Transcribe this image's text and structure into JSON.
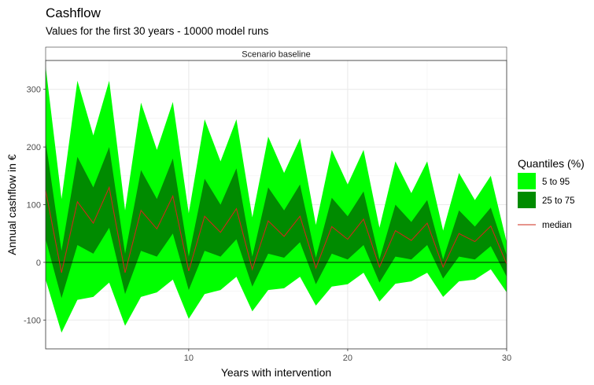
{
  "chart_data": {
    "type": "area",
    "title": "Cashflow",
    "subtitle": "Values for the first 30 years - 10000 model runs",
    "facet_label": "Scenario baseline",
    "xlabel": "Years with intervention",
    "ylabel": "Annual cashflow in €",
    "xlim": [
      1,
      30
    ],
    "ylim": [
      -150,
      350
    ],
    "x_ticks": [
      10,
      20,
      30
    ],
    "y_ticks": [
      -100,
      0,
      100,
      200,
      300
    ],
    "grid": true,
    "zero_line": true,
    "legend_position": "right",
    "legend_title": "Quantiles (%)",
    "x": [
      1,
      2,
      3,
      4,
      5,
      6,
      7,
      8,
      9,
      10,
      11,
      12,
      13,
      14,
      15,
      16,
      17,
      18,
      19,
      20,
      21,
      22,
      23,
      24,
      25,
      26,
      27,
      28,
      29,
      30
    ],
    "series": [
      {
        "name": "5 to 95",
        "color": "#00ff00",
        "lower": [
          -30,
          -122,
          -65,
          -60,
          -35,
          -110,
          -60,
          -52,
          -30,
          -98,
          -55,
          -48,
          -25,
          -85,
          -48,
          -45,
          -25,
          -75,
          -42,
          -38,
          -18,
          -68,
          -37,
          -33,
          -18,
          -60,
          -33,
          -30,
          -12,
          -52
        ],
        "upper": [
          340,
          110,
          315,
          220,
          315,
          90,
          277,
          195,
          278,
          85,
          248,
          175,
          248,
          78,
          218,
          155,
          215,
          65,
          195,
          135,
          195,
          60,
          175,
          120,
          175,
          55,
          155,
          108,
          150,
          35
        ]
      },
      {
        "name": "25 to 75",
        "color": "#008b00",
        "lower": [
          40,
          -62,
          30,
          15,
          60,
          -55,
          20,
          10,
          50,
          -48,
          20,
          10,
          40,
          -42,
          15,
          8,
          35,
          -38,
          15,
          5,
          30,
          -35,
          10,
          5,
          30,
          -28,
          10,
          5,
          28,
          -25
        ],
        "upper": [
          210,
          20,
          183,
          130,
          200,
          15,
          160,
          110,
          180,
          10,
          145,
          100,
          163,
          10,
          130,
          90,
          135,
          8,
          112,
          80,
          123,
          5,
          100,
          70,
          108,
          5,
          90,
          62,
          95,
          12
        ]
      },
      {
        "name": "median",
        "color": "#cc2a1a",
        "values": [
          125,
          -18,
          105,
          68,
          130,
          -18,
          90,
          58,
          115,
          -15,
          80,
          52,
          93,
          -12,
          72,
          45,
          80,
          -10,
          62,
          40,
          75,
          -8,
          55,
          38,
          68,
          -8,
          50,
          36,
          63,
          -3
        ]
      }
    ]
  }
}
